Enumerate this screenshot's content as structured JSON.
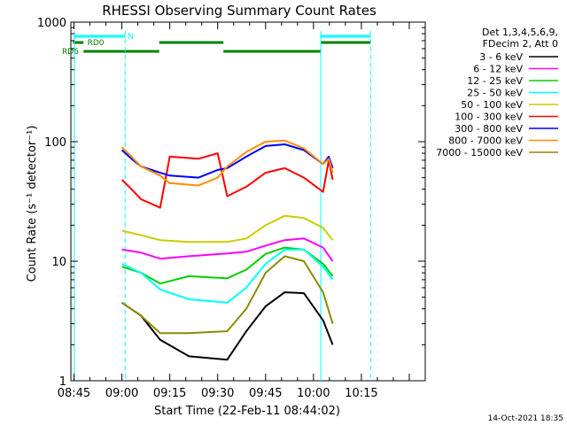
{
  "chart_data": {
    "type": "line",
    "title": "RHESSI Observing Summary Count Rates",
    "xlabel": "Start Time (22-Feb-11 08:44:02)",
    "ylabel": "Count Rate (s⁻¹ detector⁻¹)",
    "xlim": [
      8.7339,
      10.5833
    ],
    "ylim": [
      1,
      1000
    ],
    "y_scale": "log",
    "x_ticks": [
      {
        "label": "08:45",
        "value": 8.75
      },
      {
        "label": "09:00",
        "value": 9.0
      },
      {
        "label": "09:15",
        "value": 9.25
      },
      {
        "label": "09:30",
        "value": 9.5
      },
      {
        "label": "09:45",
        "value": 9.75
      },
      {
        "label": "10:00",
        "value": 10.0
      },
      {
        "label": "10:15",
        "value": 10.25
      }
    ],
    "y_ticks": [
      {
        "label": "1",
        "value": 1
      },
      {
        "label": "10",
        "value": 10
      },
      {
        "label": "100",
        "value": 100
      },
      {
        "label": "1000",
        "value": 1000
      }
    ],
    "legend_header": [
      "Det 1,3,4,5,6,9,",
      "FDecim 2, Att 0"
    ],
    "footer": "14-Oct-2021 18:35",
    "flag_labels": [
      "N",
      "RD0",
      "RD6"
    ],
    "series": [
      {
        "name": "3 - 6 keV",
        "color": "#000000",
        "x": [
          9.0,
          9.1,
          9.2,
          9.35,
          9.55,
          9.65,
          9.75,
          9.85,
          9.95,
          10.05,
          10.1
        ],
        "y": [
          4.5,
          3.5,
          2.2,
          1.6,
          1.5,
          2.6,
          4.2,
          5.5,
          5.4,
          3.2,
          2.0
        ]
      },
      {
        "name": "6 - 12 keV",
        "color": "#ff00ff",
        "x": [
          9.0,
          9.1,
          9.2,
          9.35,
          9.55,
          9.65,
          9.75,
          9.85,
          9.95,
          10.05,
          10.1
        ],
        "y": [
          12.5,
          11.8,
          10.5,
          11.0,
          11.6,
          12.0,
          13.5,
          15.0,
          15.5,
          13.0,
          10.0
        ]
      },
      {
        "name": "12 - 25 keV",
        "color": "#00d000",
        "x": [
          9.0,
          9.1,
          9.2,
          9.35,
          9.55,
          9.65,
          9.75,
          9.85,
          9.95,
          10.05,
          10.1
        ],
        "y": [
          9.0,
          8.0,
          6.5,
          7.5,
          7.2,
          8.5,
          11.5,
          13.0,
          12.5,
          9.5,
          7.5
        ]
      },
      {
        "name": "25 - 50 keV",
        "color": "#00ffff",
        "x": [
          9.0,
          9.1,
          9.2,
          9.35,
          9.55,
          9.65,
          9.75,
          9.85,
          9.95,
          10.05,
          10.1
        ],
        "y": [
          9.5,
          8.0,
          5.8,
          4.8,
          4.5,
          6.0,
          9.5,
          12.5,
          12.5,
          9.0,
          7.0
        ]
      },
      {
        "name": "50 - 100 keV",
        "color": "#cccc00",
        "x": [
          9.0,
          9.1,
          9.2,
          9.35,
          9.55,
          9.65,
          9.75,
          9.85,
          9.95,
          10.05,
          10.1
        ],
        "y": [
          18.0,
          16.5,
          15.0,
          14.5,
          14.5,
          15.5,
          20.0,
          24.0,
          23.0,
          19.0,
          15.0
        ]
      },
      {
        "name": "100 - 300 keV",
        "color": "#ff0000",
        "x": [
          9.0,
          9.05,
          9.1,
          9.2,
          9.25,
          9.4,
          9.5,
          9.55,
          9.65,
          9.75,
          9.85,
          9.95,
          10.05,
          10.08,
          10.1
        ],
        "y": [
          48.0,
          40.0,
          33.0,
          28.0,
          75.0,
          72.0,
          80.0,
          35.0,
          42.0,
          55.0,
          60.0,
          50.0,
          38.0,
          70.0,
          48.0
        ]
      },
      {
        "name": "300 - 800 keV",
        "color": "#0000ff",
        "x": [
          9.0,
          9.05,
          9.1,
          9.2,
          9.25,
          9.4,
          9.5,
          9.55,
          9.65,
          9.75,
          9.85,
          9.95,
          10.05,
          10.08,
          10.1
        ],
        "y": [
          85.0,
          72.0,
          62.0,
          55.0,
          52.0,
          50.0,
          58.0,
          60.0,
          75.0,
          92.0,
          95.0,
          85.0,
          65.0,
          75.0,
          60.0
        ]
      },
      {
        "name": "800 - 7000 keV",
        "color": "#ff8c00",
        "x": [
          9.0,
          9.05,
          9.1,
          9.2,
          9.25,
          9.4,
          9.5,
          9.55,
          9.65,
          9.75,
          9.85,
          9.95,
          10.05,
          10.08,
          10.1
        ],
        "y": [
          90.0,
          75.0,
          62.0,
          52.0,
          45.0,
          43.0,
          50.0,
          62.0,
          82.0,
          100.0,
          102.0,
          88.0,
          65.0,
          72.0,
          55.0
        ]
      },
      {
        "name": "7000 - 15000 keV",
        "color": "#8b8b00",
        "x": [
          9.0,
          9.1,
          9.2,
          9.35,
          9.55,
          9.65,
          9.75,
          9.85,
          9.95,
          10.05,
          10.1
        ],
        "y": [
          4.5,
          3.5,
          2.5,
          2.5,
          2.6,
          4.0,
          8.0,
          11.0,
          10.0,
          5.5,
          3.0
        ]
      }
    ]
  }
}
